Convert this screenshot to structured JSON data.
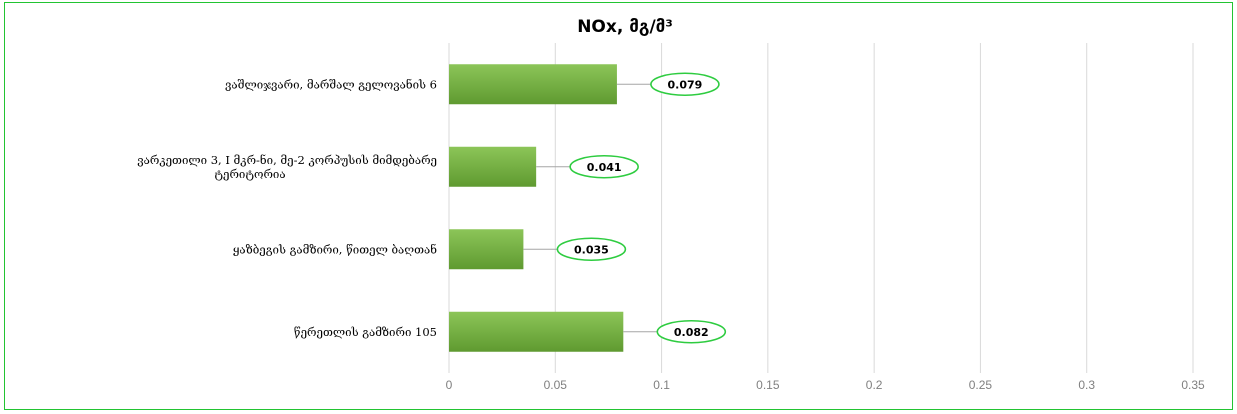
{
  "colors": {
    "border": "#22c432",
    "bar_top": "#8cc558",
    "bar_bottom": "#5f9a30",
    "label_ring": "#2ecc40",
    "grid": "#d9d9d9"
  },
  "chart_data": {
    "type": "bar",
    "orientation": "horizontal",
    "title": "NOx, მგ/მ³",
    "categories": [
      [
        "ვაშლიჯვარი, მარშალ გელოვანის 6"
      ],
      [
        "ვარკეთილი 3, I მკრ-ნი, მე-2 კორპუსის მიმდებარე",
        "ტერიტორია"
      ],
      [
        "ყაზბეგის გამზირი, წითელ ბაღთან"
      ],
      [
        "წერეთლის გამზირი 105"
      ]
    ],
    "values": [
      0.079,
      0.041,
      0.035,
      0.082
    ],
    "data_labels": [
      "0.079",
      "0.041",
      "0.035",
      "0.082"
    ],
    "x_ticks": [
      "0",
      "0.05",
      "0.1",
      "0.15",
      "0.2",
      "0.25",
      "0.3",
      "0.35"
    ],
    "xlim": [
      0,
      0.35
    ],
    "grid": true,
    "legend": false
  }
}
